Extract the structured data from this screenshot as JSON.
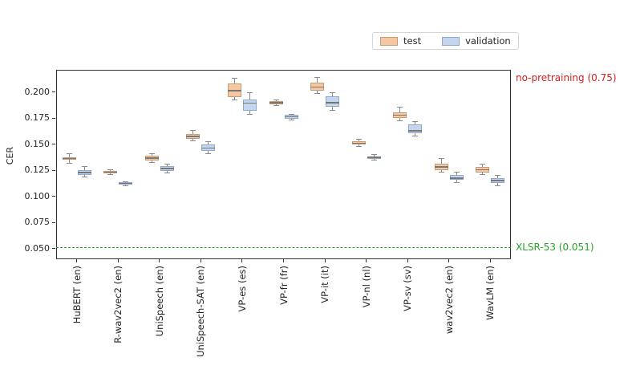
{
  "legend": {
    "items": [
      {
        "label": "test"
      },
      {
        "label": "validation"
      }
    ]
  },
  "chart_data": {
    "type": "boxplot",
    "title": "",
    "xlabel": "",
    "ylabel": "CER",
    "categories": [
      "HuBERT (en)",
      "R-wav2vec2 (en)",
      "UniSpeech (en)",
      "UniSpeech-SAT (en)",
      "VP-es (es)",
      "VP-fr (fr)",
      "VP-it (it)",
      "VP-nl (nl)",
      "VP-sv (sv)",
      "wav2vec2 (en)",
      "WavLM (en)"
    ],
    "yticks": [
      0.05,
      0.075,
      0.1,
      0.125,
      0.15,
      0.175,
      0.2
    ],
    "ylim": [
      0.04,
      0.2215
    ],
    "grid": false,
    "legend_position": "top-right-above-axes",
    "series": [
      {
        "name": "test",
        "fill": "#f5c7a2",
        "edge": "#c79c73",
        "boxes": [
          {
            "whislo": 0.132,
            "q1": 0.135,
            "med": 0.1365,
            "q3": 0.138,
            "whishi": 0.141
          },
          {
            "whislo": 0.1215,
            "q1": 0.1225,
            "med": 0.1235,
            "q3": 0.1245,
            "whishi": 0.1255
          },
          {
            "whislo": 0.1323,
            "q1": 0.1346,
            "med": 0.1369,
            "q3": 0.1392,
            "whishi": 0.1408
          },
          {
            "whislo": 0.1531,
            "q1": 0.1554,
            "med": 0.1577,
            "q3": 0.16,
            "whishi": 0.1631
          },
          {
            "whislo": 0.1927,
            "q1": 0.1954,
            "med": 0.2015,
            "q3": 0.2085,
            "whishi": 0.2131
          },
          {
            "whislo": 0.187,
            "q1": 0.1885,
            "med": 0.19,
            "q3": 0.1912,
            "whishi": 0.1925
          },
          {
            "whislo": 0.1985,
            "q1": 0.2015,
            "med": 0.205,
            "q3": 0.2092,
            "whishi": 0.2142
          },
          {
            "whislo": 0.148,
            "q1": 0.1498,
            "med": 0.1512,
            "q3": 0.1528,
            "whishi": 0.155
          },
          {
            "whislo": 0.1727,
            "q1": 0.1754,
            "med": 0.1781,
            "q3": 0.1808,
            "whishi": 0.1854
          },
          {
            "whislo": 0.1238,
            "q1": 0.1254,
            "med": 0.1285,
            "q3": 0.1315,
            "whishi": 0.1364
          },
          {
            "whislo": 0.1208,
            "q1": 0.1231,
            "med": 0.1258,
            "q3": 0.1285,
            "whishi": 0.1312
          }
        ]
      },
      {
        "name": "validation",
        "fill": "#c3d6ee",
        "edge": "#8fa9cc",
        "boxes": [
          {
            "whislo": 0.119,
            "q1": 0.1208,
            "med": 0.123,
            "q3": 0.1254,
            "whishi": 0.1285
          },
          {
            "whislo": 0.1105,
            "q1": 0.1115,
            "med": 0.1127,
            "q3": 0.1138,
            "whishi": 0.1145
          },
          {
            "whislo": 0.1223,
            "q1": 0.1246,
            "med": 0.127,
            "q3": 0.1292,
            "whishi": 0.131
          },
          {
            "whislo": 0.1415,
            "q1": 0.1438,
            "med": 0.1465,
            "q3": 0.15,
            "whishi": 0.1523
          },
          {
            "whislo": 0.1792,
            "q1": 0.1823,
            "med": 0.1896,
            "q3": 0.1931,
            "whishi": 0.1992
          },
          {
            "whislo": 0.1731,
            "q1": 0.1746,
            "med": 0.1765,
            "q3": 0.1781,
            "whishi": 0.1792
          },
          {
            "whislo": 0.1827,
            "q1": 0.1862,
            "med": 0.19,
            "q3": 0.1962,
            "whishi": 0.1996
          },
          {
            "whislo": 0.1346,
            "q1": 0.1362,
            "med": 0.1377,
            "q3": 0.1388,
            "whishi": 0.1404
          },
          {
            "whislo": 0.1581,
            "q1": 0.1604,
            "med": 0.1631,
            "q3": 0.1692,
            "whishi": 0.172
          },
          {
            "whislo": 0.1138,
            "q1": 0.1158,
            "med": 0.1177,
            "q3": 0.1208,
            "whishi": 0.1234
          },
          {
            "whislo": 0.1104,
            "q1": 0.1131,
            "med": 0.1154,
            "q3": 0.1177,
            "whishi": 0.1204
          }
        ]
      }
    ],
    "reference_lines": [
      {
        "label": "no-pretraining (0.75)",
        "value": 0.75,
        "color": "#cc2020",
        "style": "off-scale-label"
      },
      {
        "label": "XLSR-53 (0.051)",
        "value": 0.051,
        "color": "#27a327",
        "style": "dashed"
      }
    ]
  }
}
